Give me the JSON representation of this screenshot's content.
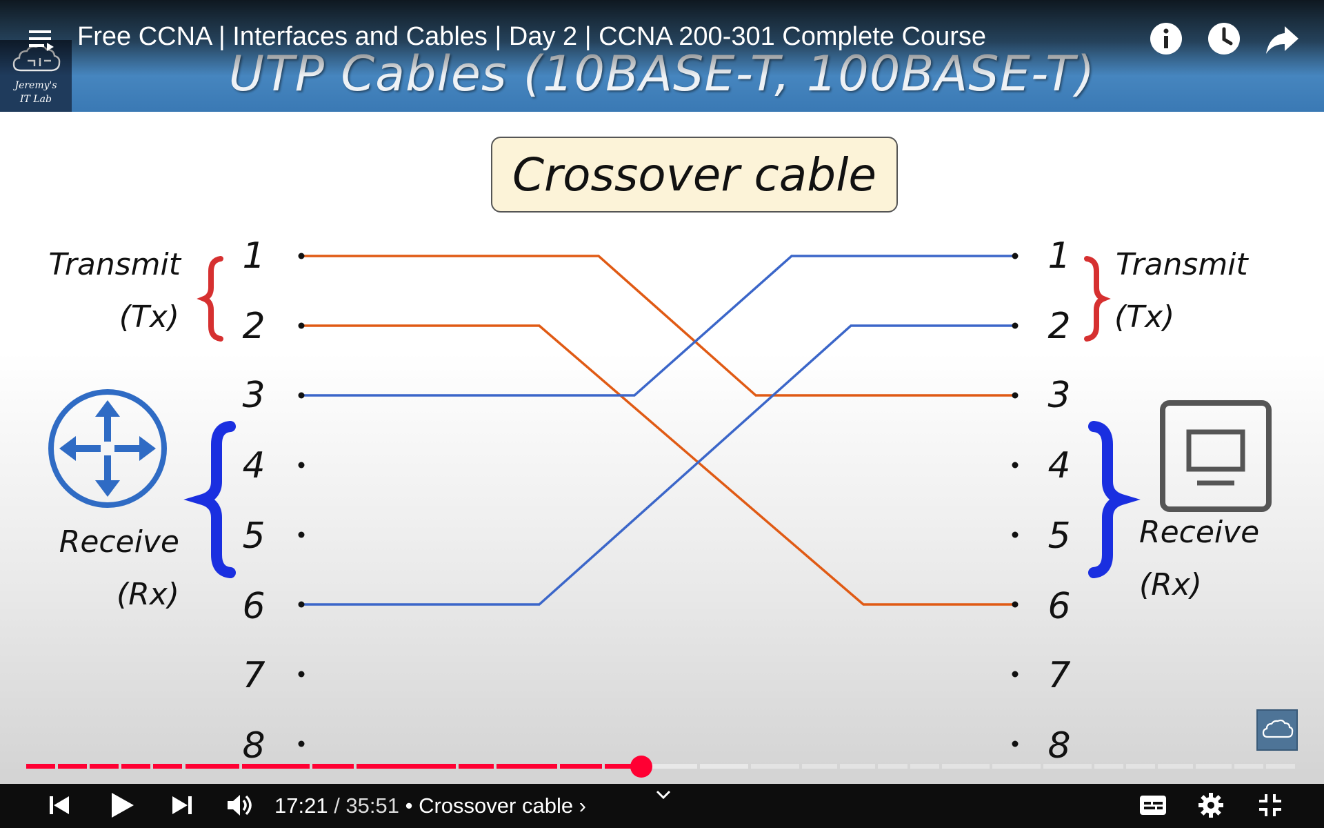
{
  "video": {
    "title": "Free CCNA | Interfaces and Cables | Day 2 | CCNA 200-301 Complete Course",
    "channel_logo_line1": "Jeremy's",
    "channel_logo_line2": "IT Lab"
  },
  "slide": {
    "title": "UTP Cables (10BASE-T, 100BASE-T)",
    "box_label": "Crossover cable",
    "left_labels": {
      "transmit": "Transmit",
      "tx": "(Tx)",
      "receive": "Receive",
      "rx": "(Rx)"
    },
    "right_labels": {
      "transmit": "Transmit",
      "tx": "(Tx)",
      "receive": "Receive",
      "rx": "(Rx)"
    },
    "left_pins": [
      "1",
      "2",
      "3",
      "4",
      "5",
      "6",
      "7",
      "8"
    ],
    "right_pins": [
      "1",
      "2",
      "3",
      "4",
      "5",
      "6",
      "7",
      "8"
    ],
    "left_device_icon": "router-icon",
    "right_device_icon": "pc-icon",
    "wires": [
      {
        "from": "1",
        "to": "3",
        "color": "#e05a14"
      },
      {
        "from": "2",
        "to": "6",
        "color": "#e05a14"
      },
      {
        "from": "3",
        "to": "1",
        "color": "#3b66c9"
      },
      {
        "from": "6",
        "to": "2",
        "color": "#3b66c9"
      }
    ],
    "colors": {
      "transmit_brace": "#d63030",
      "receive_brace": "#1a2fe0",
      "router": "#2f6bc4"
    }
  },
  "player": {
    "current_time": "17:21",
    "duration": "35:51",
    "separator": " / ",
    "chapter": "• Crossover cable ›",
    "progress_fraction": 0.484,
    "played_color": "#ff0033",
    "buffered_color": "#e8e8e8",
    "icons": [
      "previous-icon",
      "play-icon",
      "next-icon",
      "volume-icon",
      "chevron-down-icon",
      "subtitles-icon",
      "settings-icon",
      "exit-fullscreen-icon",
      "info-icon",
      "watch-later-icon",
      "share-icon",
      "playlist-icon"
    ]
  }
}
